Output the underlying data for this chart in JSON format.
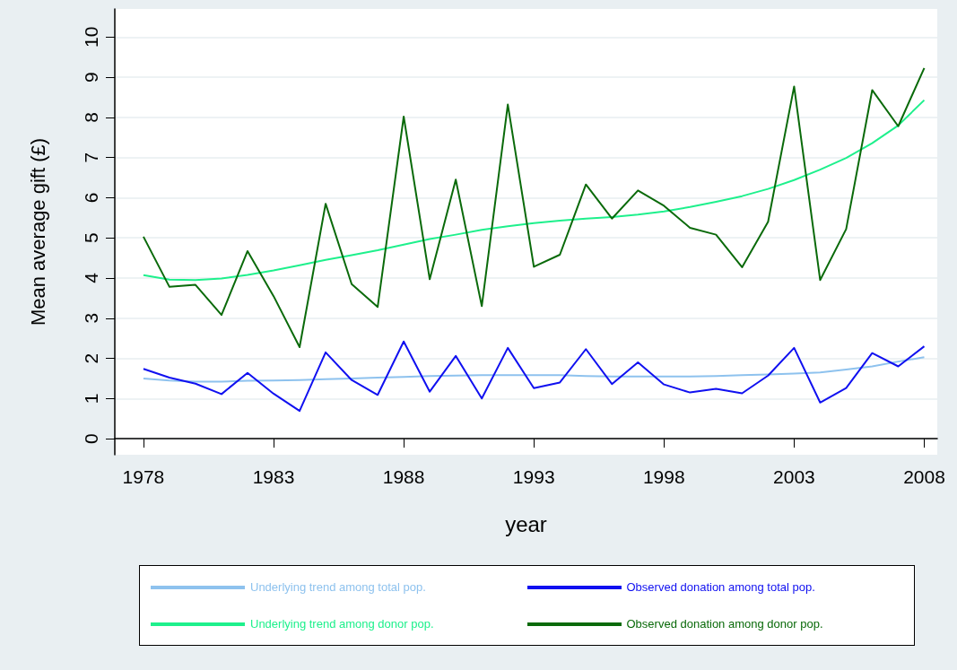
{
  "chart_data": {
    "type": "line",
    "xlabel": "year",
    "ylabel": "Mean average gift (£)",
    "x": [
      1978,
      1979,
      1980,
      1981,
      1982,
      1983,
      1984,
      1985,
      1986,
      1987,
      1988,
      1989,
      1990,
      1991,
      1992,
      1993,
      1994,
      1995,
      1996,
      1997,
      1998,
      1999,
      2000,
      2001,
      2002,
      2003,
      2004,
      2005,
      2006,
      2007,
      2008
    ],
    "xlim": [
      1976.9,
      2008.5
    ],
    "xticks": [
      1978,
      1983,
      1988,
      1993,
      1998,
      2003,
      2008
    ],
    "ylim": [
      -0.4,
      10.7
    ],
    "yticks": [
      0,
      1,
      2,
      3,
      4,
      5,
      6,
      7,
      8,
      9,
      10
    ],
    "grid": "y",
    "legend": "bottom",
    "marker": "none",
    "line_style": "solid",
    "series": [
      {
        "name": "Underlying trend among total pop.",
        "color": "#8ec2ee",
        "values": [
          1.5,
          1.45,
          1.42,
          1.42,
          1.44,
          1.45,
          1.46,
          1.48,
          1.5,
          1.52,
          1.54,
          1.56,
          1.57,
          1.58,
          1.58,
          1.58,
          1.58,
          1.56,
          1.55,
          1.55,
          1.55,
          1.55,
          1.56,
          1.58,
          1.6,
          1.62,
          1.65,
          1.72,
          1.8,
          1.92,
          2.03
        ]
      },
      {
        "name": "Observed donation among total pop.",
        "color": "#1010f0",
        "values": [
          1.74,
          1.52,
          1.37,
          1.11,
          1.64,
          1.12,
          0.69,
          2.15,
          1.46,
          1.09,
          2.42,
          1.17,
          2.06,
          1.0,
          2.26,
          1.26,
          1.4,
          2.23,
          1.36,
          1.9,
          1.35,
          1.15,
          1.24,
          1.13,
          1.57,
          2.26,
          0.9,
          1.26,
          2.13,
          1.8,
          2.3
        ]
      },
      {
        "name": "Underlying trend among donor pop.",
        "color": "#1ef08c",
        "values": [
          4.07,
          3.96,
          3.95,
          3.99,
          4.08,
          4.19,
          4.32,
          4.45,
          4.57,
          4.69,
          4.83,
          4.97,
          5.08,
          5.2,
          5.29,
          5.37,
          5.43,
          5.48,
          5.52,
          5.58,
          5.66,
          5.77,
          5.9,
          6.04,
          6.22,
          6.44,
          6.7,
          6.99,
          7.36,
          7.8,
          8.43
        ]
      },
      {
        "name": "Observed donation among donor pop.",
        "color": "#0a6a0a",
        "values": [
          5.03,
          3.78,
          3.83,
          3.08,
          4.67,
          3.55,
          2.28,
          5.85,
          3.85,
          3.28,
          8.02,
          3.97,
          6.45,
          3.3,
          8.32,
          4.28,
          4.58,
          6.33,
          5.48,
          6.18,
          5.8,
          5.25,
          5.08,
          4.27,
          5.4,
          8.77,
          3.95,
          5.22,
          8.68,
          7.78,
          9.23
        ]
      }
    ]
  }
}
